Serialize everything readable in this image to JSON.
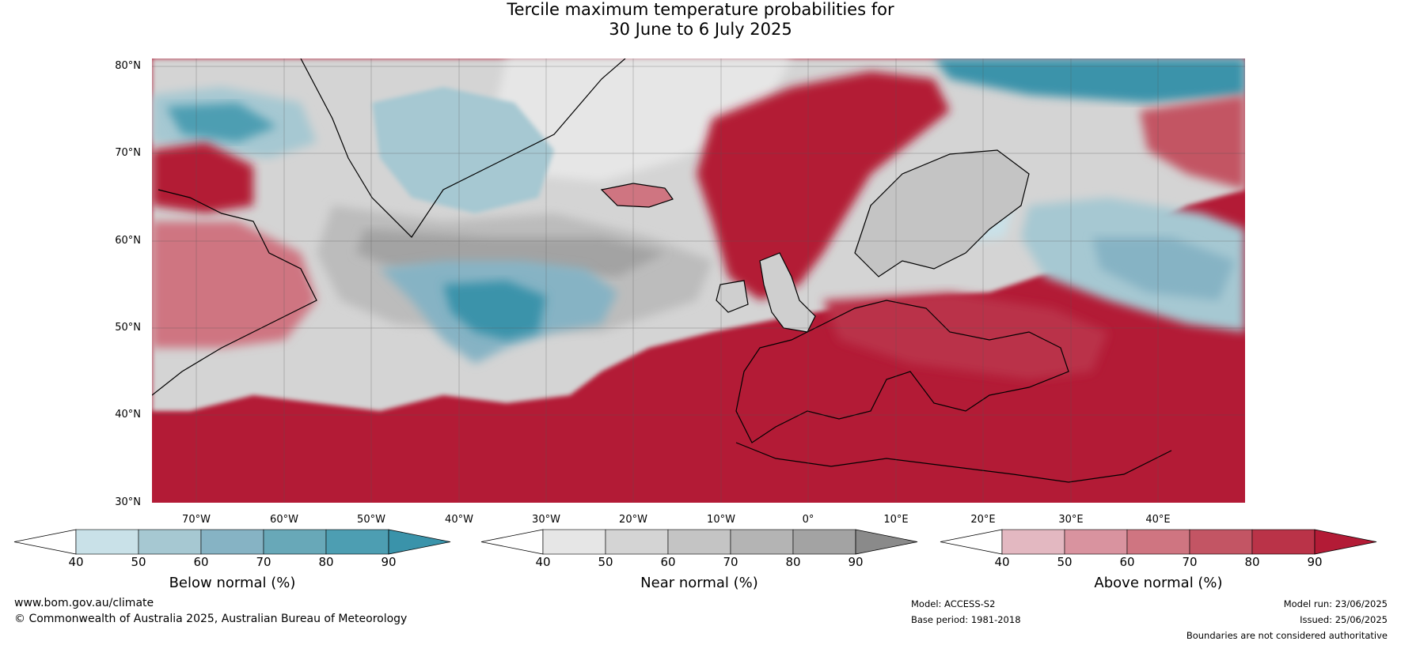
{
  "title_line1": "Tercile maximum temperature probabilities for",
  "title_line2": "30 June to 6 July 2025",
  "map": {
    "lat_labels": [
      "80°N",
      "70°N",
      "60°N",
      "50°N",
      "40°N",
      "30°N"
    ],
    "lon_labels": [
      "70°W",
      "60°W",
      "50°W",
      "40°W",
      "30°W",
      "20°W",
      "10°W",
      "0°",
      "10°E",
      "20°E",
      "30°E",
      "40°E"
    ],
    "colors": {
      "above_strong": "#b31b36",
      "near_light": "#e3e3e3",
      "below_mid": "#7fb0be",
      "coast": "#000000",
      "borders": "#808080"
    }
  },
  "colorbars": [
    {
      "label": "Below normal (%)",
      "ticks": [
        "40",
        "50",
        "60",
        "70",
        "80",
        "90"
      ],
      "colors": [
        "#c9e1e8",
        "#a6c8d2",
        "#86b3c4",
        "#68a8b8",
        "#4d9eb2",
        "#3a93aa"
      ]
    },
    {
      "label": "Near normal (%)",
      "ticks": [
        "40",
        "50",
        "60",
        "70",
        "80",
        "90"
      ],
      "colors": [
        "#e6e6e6",
        "#d4d4d4",
        "#c4c4c4",
        "#b4b4b4",
        "#a3a3a3",
        "#8a8a8a"
      ]
    },
    {
      "label": "Above normal (%)",
      "ticks": [
        "40",
        "50",
        "60",
        "70",
        "80",
        "90"
      ],
      "colors": [
        "#e3b8c1",
        "#d9939f",
        "#cf7581",
        "#c35564",
        "#ba3348",
        "#b31b36"
      ]
    }
  ],
  "footer": {
    "website": "www.bom.gov.au/climate",
    "copyright": "© Commonwealth of Australia 2025, Australian Bureau of Meteorology",
    "model": "Model: ACCESS-S2",
    "base_period": "Base period: 1981-2018",
    "model_run": "Model run: 23/06/2025",
    "issued": "Issued: 25/06/2025",
    "disclaimer": "Boundaries are not considered authoritative"
  }
}
